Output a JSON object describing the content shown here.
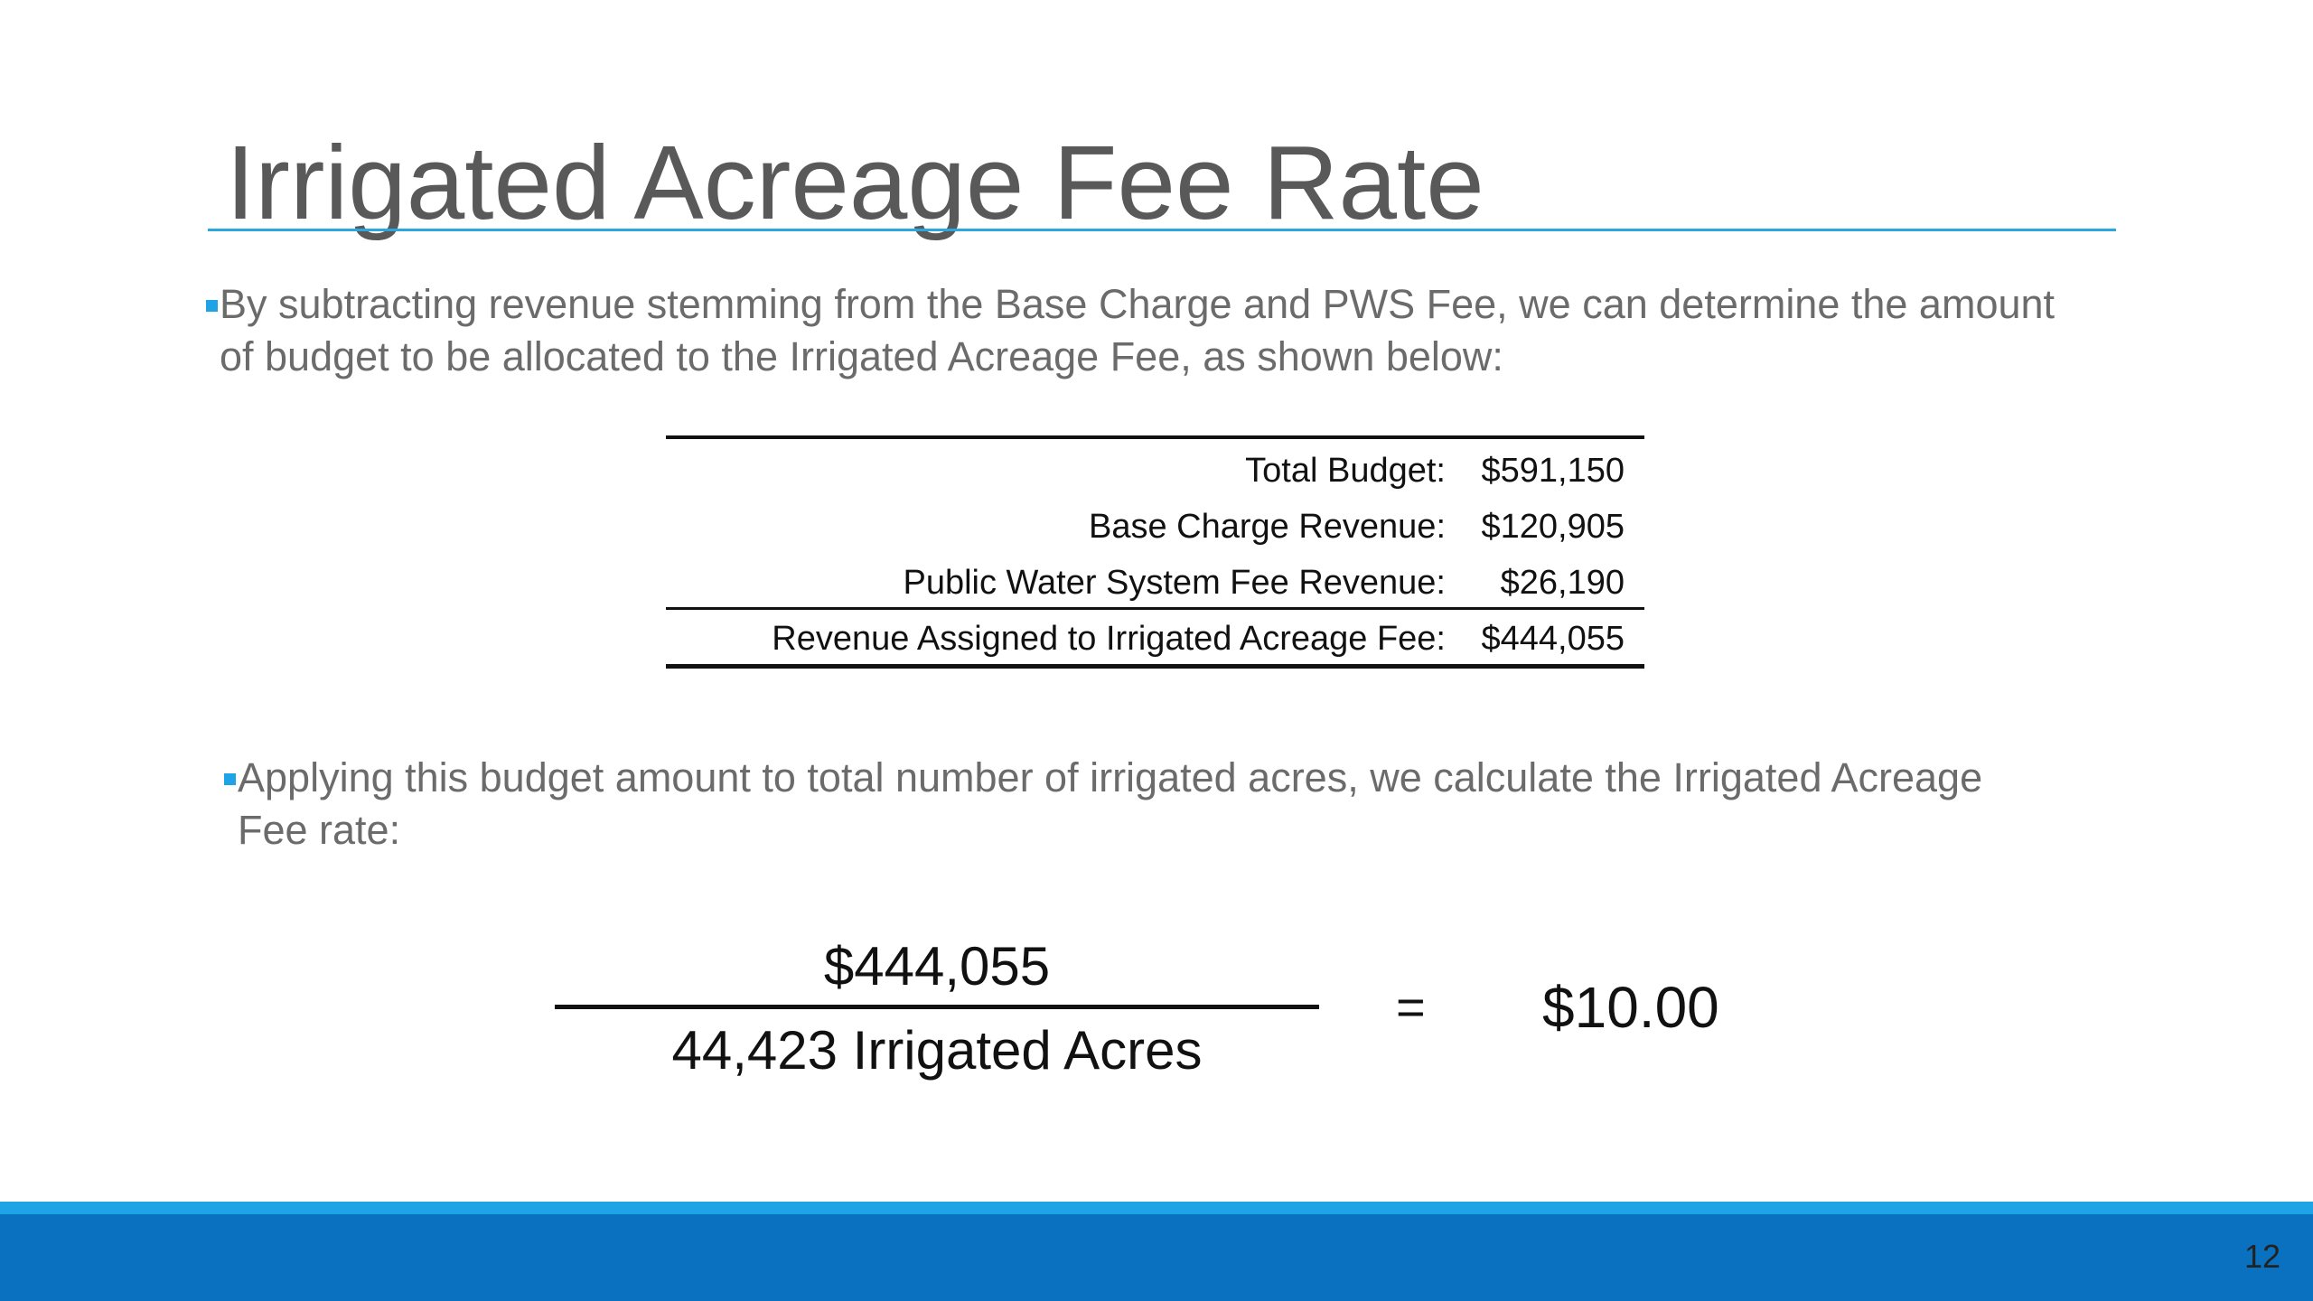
{
  "slide": {
    "title": "Irrigated Acreage Fee Rate",
    "bullets": [
      "By subtracting revenue stemming from the Base Charge and PWS Fee, we can determine the amount of budget to be allocated to the Irrigated Acreage Fee, as shown below:",
      "Applying this budget amount to total number of irrigated acres, we calculate the Irrigated Acreage Fee rate:"
    ],
    "page_number": "12"
  },
  "budget_table": {
    "rows": [
      {
        "label": "Total Budget:",
        "value": "$591,150"
      },
      {
        "label": "Base Charge Revenue:",
        "value": "$120,905"
      },
      {
        "label": "Public Water System Fee Revenue:",
        "value": "$26,190"
      },
      {
        "label": "Revenue Assigned to Irrigated Acreage Fee:",
        "value": "$444,055"
      }
    ]
  },
  "calculation": {
    "numerator": "$444,055",
    "denominator": "44,423 Irrigated Acres",
    "equals": "=",
    "result": "$10.00"
  },
  "colors": {
    "accent": "#1ea3e6",
    "footer": "#0a71c0",
    "title_text": "#595959"
  }
}
